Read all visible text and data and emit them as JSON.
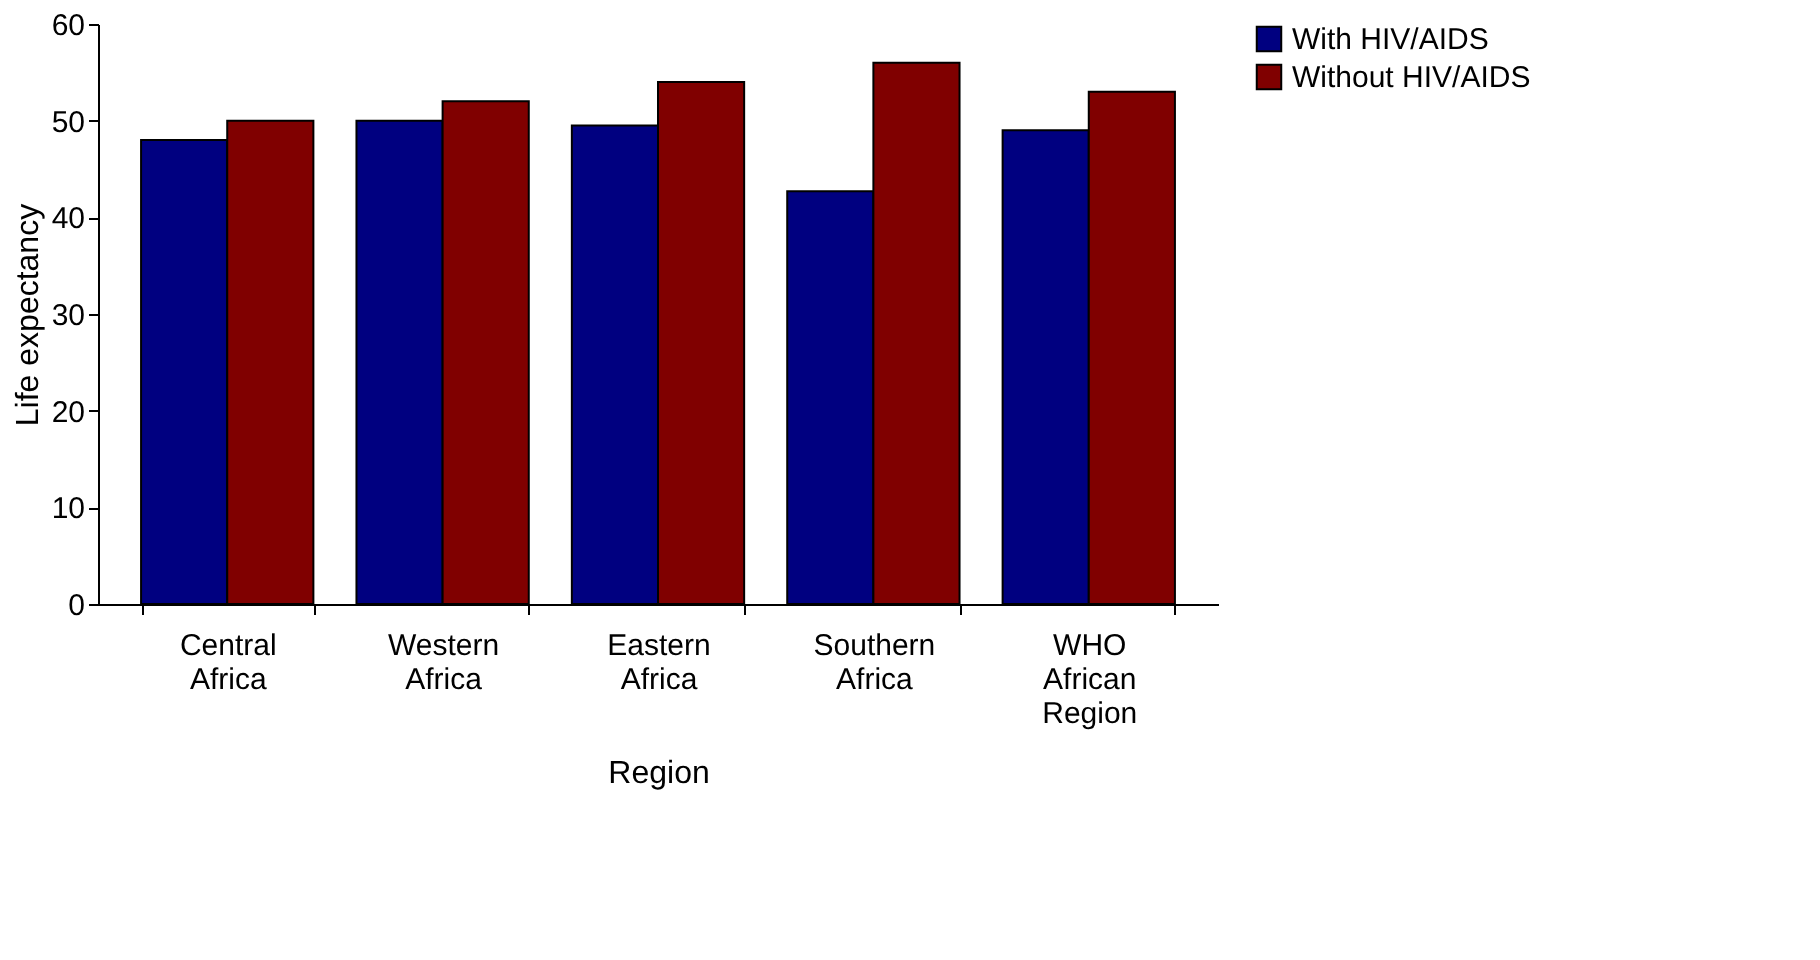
{
  "chart_data": {
    "type": "bar",
    "xlabel": "Region",
    "ylabel": "Life expectancy",
    "categories": [
      "Central Africa",
      "Western Africa",
      "Eastern Africa",
      "Southern Africa",
      "WHO African Region"
    ],
    "series": [
      {
        "name": "With HIV/AIDS",
        "color": "#000080",
        "values": [
          48,
          50,
          49.5,
          42.7,
          49
        ]
      },
      {
        "name": "Without HIV/AIDS",
        "color": "#800000",
        "values": [
          50,
          52,
          54,
          56,
          53
        ]
      }
    ],
    "ylim": [
      0,
      60
    ],
    "yticks": [
      0,
      10,
      20,
      30,
      40,
      50,
      60
    ],
    "grid": false,
    "legend": "right"
  }
}
